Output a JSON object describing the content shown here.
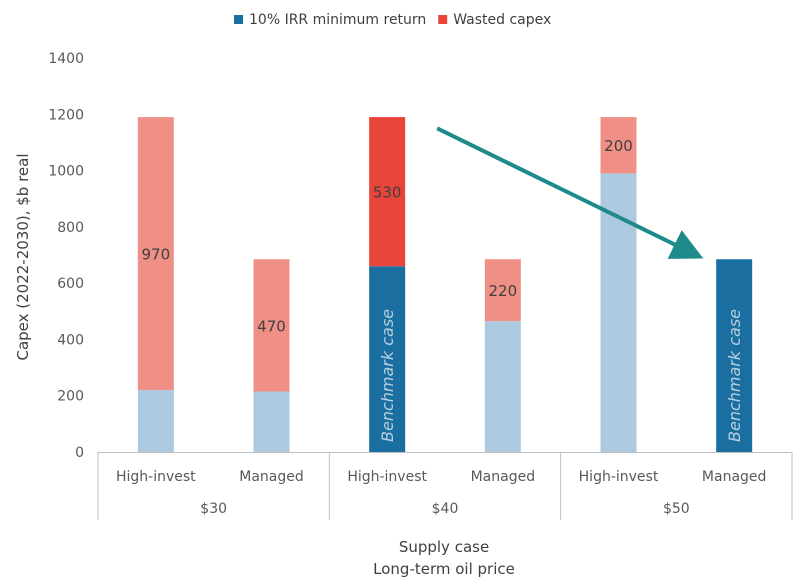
{
  "chart_data": {
    "type": "bar",
    "stacked": true,
    "ylabel": "Capex (2022-2030), $b real",
    "xlabel_line1": "Supply case",
    "xlabel_line2": "Long-term oil price",
    "ylim": [
      0,
      1400
    ],
    "yticks": [
      0,
      200,
      400,
      600,
      800,
      1000,
      1200,
      1400
    ],
    "legend": [
      {
        "name": "10% IRR minimum return",
        "color": "#1a6fa0"
      },
      {
        "name": "Wasted capex",
        "color": "#e8443a"
      }
    ],
    "groups": [
      {
        "label": "$30",
        "categories": [
          "High-invest",
          "Managed"
        ]
      },
      {
        "label": "$40",
        "categories": [
          "High-invest",
          "Managed"
        ]
      },
      {
        "label": "$50",
        "categories": [
          "High-invest",
          "Managed"
        ]
      }
    ],
    "bars": [
      {
        "group": "$30",
        "category": "High-invest",
        "base": 220,
        "wasted": 970,
        "base_color": "#adc9e0",
        "wasted_color": "#ef8f85",
        "wasted_label": "970"
      },
      {
        "group": "$30",
        "category": "Managed",
        "base": 215,
        "wasted": 470,
        "base_color": "#adc9e0",
        "wasted_color": "#ef8f85",
        "wasted_label": "470"
      },
      {
        "group": "$40",
        "category": "High-invest",
        "base": 660,
        "wasted": 530,
        "base_color": "#1a6fa0",
        "wasted_color": "#e8443a",
        "wasted_label": "530",
        "base_label": "Benchmark case"
      },
      {
        "group": "$40",
        "category": "Managed",
        "base": 465,
        "wasted": 220,
        "base_color": "#adc9e0",
        "wasted_color": "#ef8f85",
        "wasted_label": "220"
      },
      {
        "group": "$50",
        "category": "High-invest",
        "base": 990,
        "wasted": 200,
        "base_color": "#adc9e0",
        "wasted_color": "#ef8f85",
        "wasted_label": "200"
      },
      {
        "group": "$50",
        "category": "Managed",
        "base": 685,
        "wasted": 0,
        "base_color": "#1a6fa0",
        "wasted_color": "#ef8f85",
        "base_label": "Benchmark case"
      }
    ],
    "arrow": {
      "from": {
        "bar": 2,
        "value": 1150
      },
      "to": {
        "bar": 5,
        "value": 700
      },
      "color": "#1e8a8a"
    }
  }
}
